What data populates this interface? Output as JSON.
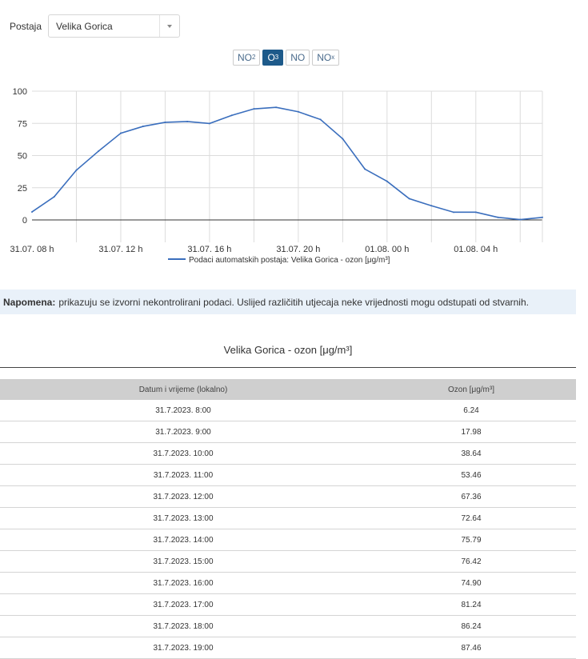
{
  "station": {
    "label": "Postaja",
    "selected": "Velika Gorica"
  },
  "pollutants": [
    {
      "base": "NO",
      "sub": "2",
      "active": false
    },
    {
      "base": "O",
      "sub": "3",
      "active": true
    },
    {
      "base": "NO",
      "sub": "",
      "active": false
    },
    {
      "base": "NO",
      "sub": "x",
      "active": false
    }
  ],
  "chart_data": {
    "type": "line",
    "x_tick_labels": [
      "31.07. 08 h",
      "31.07. 12 h",
      "31.07. 16 h",
      "31.07. 20 h",
      "01.08. 00 h",
      "01.08. 04 h"
    ],
    "y_ticks": [
      0,
      25,
      50,
      75,
      100
    ],
    "ylim": [
      0,
      100
    ],
    "grid": true,
    "legend_position": "bottom",
    "series": [
      {
        "name": "Podaci automatskih postaja: Velika Gorica - ozon [μg/m³]",
        "color": "#3a6ebd",
        "values": [
          6.24,
          17.98,
          38.64,
          53.46,
          67.36,
          72.64,
          75.79,
          76.42,
          74.9,
          81.24,
          86.24,
          87.46,
          84,
          78,
          63,
          39.5,
          30,
          16.5,
          11,
          6,
          6,
          2,
          0.3,
          2
        ]
      }
    ]
  },
  "note": {
    "label": "Napomena:",
    "text": "prikazuju se izvorni nekontrolirani podaci. Uslijed različitih utjecaja neke vrijednosti mogu odstupati od stvarnih."
  },
  "table": {
    "title": "Velika Gorica - ozon [μg/m³]",
    "headers": [
      "Datum i vrijeme (lokalno)",
      "Ozon [μg/m³]"
    ],
    "rows": [
      [
        "31.7.2023. 8:00",
        "6.24"
      ],
      [
        "31.7.2023. 9:00",
        "17.98"
      ],
      [
        "31.7.2023. 10:00",
        "38.64"
      ],
      [
        "31.7.2023. 11:00",
        "53.46"
      ],
      [
        "31.7.2023. 12:00",
        "67.36"
      ],
      [
        "31.7.2023. 13:00",
        "72.64"
      ],
      [
        "31.7.2023. 14:00",
        "75.79"
      ],
      [
        "31.7.2023. 15:00",
        "76.42"
      ],
      [
        "31.7.2023. 16:00",
        "74.90"
      ],
      [
        "31.7.2023. 17:00",
        "81.24"
      ],
      [
        "31.7.2023. 18:00",
        "86.24"
      ],
      [
        "31.7.2023. 19:00",
        "87.46"
      ]
    ]
  }
}
